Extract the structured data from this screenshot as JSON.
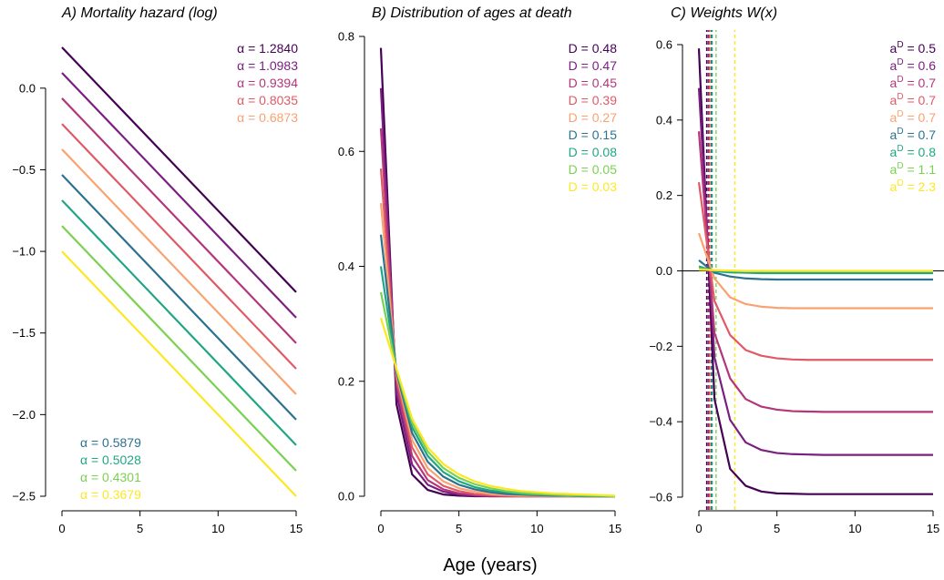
{
  "xlabel": "Age (years)",
  "colors": {
    "alpha": [
      "#440154",
      "#7a1f80",
      "#b3367a",
      "#e05a66",
      "#f9a270",
      "#2c728e",
      "#21a685",
      "#7ad151",
      "#fde725"
    ],
    "D": [
      "#440154",
      "#7a1f80",
      "#b3367a",
      "#e05a66",
      "#f9a270",
      "#2c728e",
      "#21a685",
      "#7ad151",
      "#fde725"
    ]
  },
  "chart_data": [
    {
      "type": "line",
      "title": "A) Mortality hazard (log)",
      "xlim": [
        0,
        15
      ],
      "ylim": [
        -2.5,
        0.25
      ],
      "xticks": [
        0,
        5,
        10,
        15
      ],
      "yticks": [
        -2.5,
        -2.0,
        -1.5,
        -1.0,
        -0.5,
        0.0
      ],
      "ytick_labels": [
        "−2.5",
        "−2.0",
        "−1.5",
        "−1.0",
        "−0.5",
        "0.0"
      ],
      "legend_top": [
        {
          "text": "α = 1.2840"
        },
        {
          "text": "α = 1.0983"
        },
        {
          "text": "α = 0.9394"
        },
        {
          "text": "α = 0.8035"
        },
        {
          "text": "α = 0.6873"
        }
      ],
      "legend_bottom": [
        {
          "text": "α = 0.5879"
        },
        {
          "text": "α = 0.5028"
        },
        {
          "text": "α = 0.4301"
        },
        {
          "text": "α = 0.3679"
        }
      ],
      "series": [
        {
          "alpha": 1.284,
          "x": [
            0,
            15
          ],
          "y": [
            0.25,
            -1.25
          ]
        },
        {
          "alpha": 1.0983,
          "x": [
            0,
            15
          ],
          "y": [
            0.094,
            -1.406
          ]
        },
        {
          "alpha": 0.9394,
          "x": [
            0,
            15
          ],
          "y": [
            -0.062,
            -1.562
          ]
        },
        {
          "alpha": 0.8035,
          "x": [
            0,
            15
          ],
          "y": [
            -0.219,
            -1.719
          ]
        },
        {
          "alpha": 0.6873,
          "x": [
            0,
            15
          ],
          "y": [
            -0.375,
            -1.875
          ]
        },
        {
          "alpha": 0.5879,
          "x": [
            0,
            15
          ],
          "y": [
            -0.531,
            -2.031
          ]
        },
        {
          "alpha": 0.5028,
          "x": [
            0,
            15
          ],
          "y": [
            -0.687,
            -2.187
          ]
        },
        {
          "alpha": 0.4301,
          "x": [
            0,
            15
          ],
          "y": [
            -0.844,
            -2.344
          ]
        },
        {
          "alpha": 0.3679,
          "x": [
            0,
            15
          ],
          "y": [
            -1.0,
            -2.5
          ]
        }
      ]
    },
    {
      "type": "line",
      "title": "B) Distribution of ages at death",
      "xlim": [
        0,
        15
      ],
      "ylim": [
        0,
        0.8
      ],
      "xticks": [
        0,
        5,
        10,
        15
      ],
      "yticks": [
        0.0,
        0.2,
        0.4,
        0.6,
        0.8
      ],
      "ytick_labels": [
        "0.0",
        "0.2",
        "0.4",
        "0.6",
        "0.8"
      ],
      "legend": [
        {
          "text": "D = 0.48"
        },
        {
          "text": "D = 0.47"
        },
        {
          "text": "D = 0.45"
        },
        {
          "text": "D = 0.39"
        },
        {
          "text": "D = 0.27"
        },
        {
          "text": "D = 0.15"
        },
        {
          "text": "D = 0.08"
        },
        {
          "text": "D = 0.05"
        },
        {
          "text": "D = 0.03"
        }
      ],
      "x": [
        0,
        1,
        2,
        3,
        4,
        5,
        6,
        7,
        8,
        9,
        10,
        11,
        12,
        13,
        14,
        15
      ],
      "series": [
        {
          "y": [
            0.78,
            0.16,
            0.038,
            0.011,
            0.003,
            0.001,
            0,
            0,
            0,
            0,
            0,
            0,
            0,
            0,
            0,
            0
          ]
        },
        {
          "y": [
            0.71,
            0.178,
            0.055,
            0.02,
            0.008,
            0.003,
            0.001,
            0,
            0,
            0,
            0,
            0,
            0,
            0,
            0,
            0
          ]
        },
        {
          "y": [
            0.64,
            0.194,
            0.07,
            0.028,
            0.012,
            0.005,
            0.002,
            0.001,
            0,
            0,
            0,
            0,
            0,
            0,
            0,
            0
          ]
        },
        {
          "y": [
            0.57,
            0.205,
            0.085,
            0.038,
            0.018,
            0.009,
            0.004,
            0.002,
            0.001,
            0,
            0,
            0,
            0,
            0,
            0,
            0
          ]
        },
        {
          "y": [
            0.51,
            0.212,
            0.098,
            0.049,
            0.026,
            0.014,
            0.008,
            0.004,
            0.002,
            0.001,
            0.001,
            0,
            0,
            0,
            0,
            0
          ]
        },
        {
          "y": [
            0.455,
            0.216,
            0.11,
            0.06,
            0.034,
            0.02,
            0.012,
            0.007,
            0.004,
            0.003,
            0.002,
            0.001,
            0.001,
            0,
            0,
            0
          ]
        },
        {
          "y": [
            0.4,
            0.218,
            0.12,
            0.07,
            0.042,
            0.026,
            0.016,
            0.01,
            0.007,
            0.004,
            0.003,
            0.002,
            0.001,
            0.001,
            0,
            0
          ]
        },
        {
          "y": [
            0.355,
            0.22,
            0.128,
            0.078,
            0.049,
            0.032,
            0.021,
            0.014,
            0.009,
            0.006,
            0.004,
            0.003,
            0.002,
            0.001,
            0.001,
            0
          ]
        },
        {
          "y": [
            0.31,
            0.222,
            0.135,
            0.085,
            0.056,
            0.038,
            0.026,
            0.018,
            0.013,
            0.009,
            0.007,
            0.005,
            0.004,
            0.003,
            0.002,
            0.001
          ]
        }
      ]
    },
    {
      "type": "line",
      "title": "C) Weights W(x)",
      "xlim": [
        0,
        15
      ],
      "ylim": [
        -0.6,
        0.6
      ],
      "xticks": [
        0,
        5,
        10,
        15
      ],
      "yticks": [
        -0.6,
        -0.4,
        -0.2,
        0.0,
        0.2,
        0.4,
        0.6
      ],
      "ytick_labels": [
        "−0.6",
        "−0.4",
        "−0.2",
        "0.0",
        "0.2",
        "0.4",
        "0.6"
      ],
      "legend_prefix": "a",
      "legend_sup": "D",
      "legend_values": [
        "= 0.5",
        "= 0.6",
        "= 0.7",
        "= 0.7",
        "= 0.7",
        "= 0.7",
        "= 0.8",
        "= 1.1",
        "= 2.3"
      ],
      "vlines": [
        0.5,
        0.6,
        0.65,
        0.7,
        0.75,
        0.8,
        0.85,
        1.1,
        2.3
      ],
      "x": [
        0,
        1,
        2,
        3,
        4,
        5,
        6,
        7,
        8,
        9,
        10,
        11,
        12,
        13,
        14,
        15
      ],
      "series": [
        {
          "y": [
            0.59,
            -0.34,
            -0.525,
            -0.57,
            -0.585,
            -0.59,
            -0.591,
            -0.592,
            -0.592,
            -0.592,
            -0.592,
            -0.592,
            -0.592,
            -0.592,
            -0.592,
            -0.592
          ]
        },
        {
          "y": [
            0.485,
            -0.23,
            -0.395,
            -0.455,
            -0.475,
            -0.483,
            -0.486,
            -0.487,
            -0.488,
            -0.488,
            -0.488,
            -0.488,
            -0.488,
            -0.488,
            -0.488,
            -0.488
          ]
        },
        {
          "y": [
            0.37,
            -0.165,
            -0.285,
            -0.34,
            -0.36,
            -0.368,
            -0.372,
            -0.373,
            -0.374,
            -0.374,
            -0.374,
            -0.374,
            -0.374,
            -0.374,
            -0.374,
            -0.374
          ]
        },
        {
          "y": [
            0.235,
            -0.08,
            -0.17,
            -0.21,
            -0.225,
            -0.232,
            -0.235,
            -0.236,
            -0.236,
            -0.236,
            -0.236,
            -0.236,
            -0.236,
            -0.236,
            -0.236,
            -0.236
          ]
        },
        {
          "y": [
            0.1,
            -0.02,
            -0.07,
            -0.088,
            -0.095,
            -0.098,
            -0.099,
            -0.099,
            -0.099,
            -0.099,
            -0.099,
            -0.099,
            -0.099,
            -0.099,
            -0.099,
            -0.099
          ]
        },
        {
          "y": [
            0.028,
            -0.005,
            -0.015,
            -0.02,
            -0.022,
            -0.023,
            -0.023,
            -0.023,
            -0.023,
            -0.023,
            -0.023,
            -0.023,
            -0.023,
            -0.023,
            -0.023,
            -0.023
          ]
        },
        {
          "y": [
            0.012,
            -0.001,
            -0.004,
            -0.005,
            -0.006,
            -0.006,
            -0.006,
            -0.006,
            -0.006,
            -0.006,
            -0.006,
            -0.006,
            -0.006,
            -0.006,
            -0.006,
            -0.006
          ]
        },
        {
          "y": [
            0.006,
            0.002,
            0,
            -0.001,
            -0.001,
            -0.001,
            -0.001,
            -0.001,
            -0.001,
            -0.001,
            -0.001,
            -0.001,
            -0.001,
            -0.001,
            -0.001,
            -0.001
          ]
        },
        {
          "y": [
            0.003,
            0.002,
            0.001,
            0,
            0,
            0,
            0,
            0,
            0,
            0,
            0,
            0,
            0,
            0,
            0,
            0
          ]
        }
      ]
    }
  ]
}
